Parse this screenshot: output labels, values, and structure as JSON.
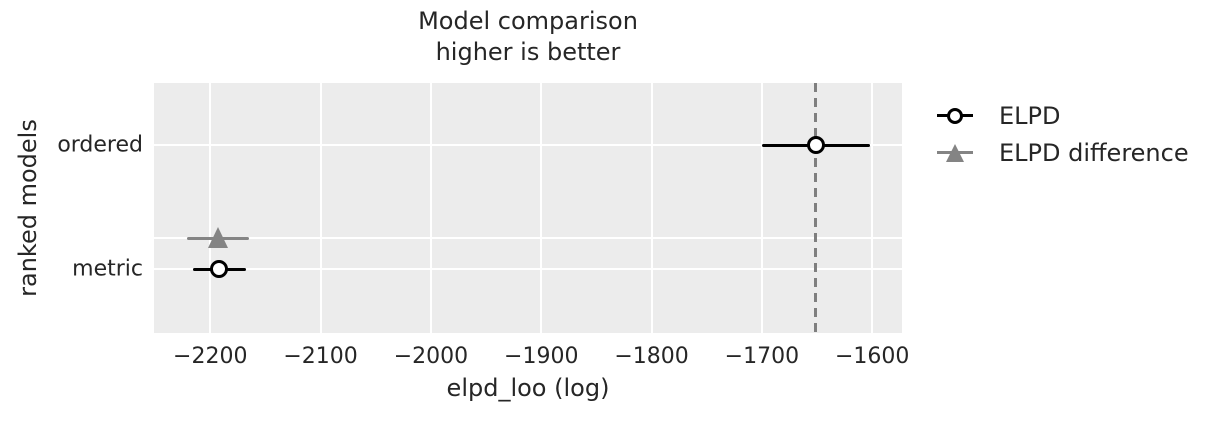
{
  "figure": {
    "title_line1": "Model comparison",
    "title_line2": "higher is better"
  },
  "axes": {
    "xlabel": "elpd_loo (log)",
    "ylabel": "ranked models"
  },
  "legend": {
    "items": [
      {
        "label": "ELPD",
        "marker": "open-circle"
      },
      {
        "label": "ELPD difference",
        "marker": "triangle"
      }
    ]
  },
  "chart_data": {
    "type": "scatter",
    "title": "Model comparison — higher is better",
    "xlabel": "elpd_loo (log)",
    "ylabel": "ranked models",
    "xlim": [
      -2251,
      -1573
    ],
    "ylim": [
      0.5,
      -1.516
    ],
    "xticks": [
      -2200,
      -2100,
      -2000,
      -1900,
      -1800,
      -1700,
      -1600
    ],
    "yticks": [
      {
        "label": "ordered",
        "pos": 0
      },
      {
        "label": "metric",
        "pos": -1
      }
    ],
    "grid": true,
    "grid_ypos": [
      0,
      -0.75,
      -1
    ],
    "legend_position": "outside-right",
    "vline_x": -1651,
    "vline_style": "dashed",
    "series": [
      {
        "id": "elpd",
        "name": "ELPD",
        "marker": "open-circle",
        "color": "#000000",
        "points": [
          {
            "model": "ordered",
            "x": -1651,
            "y": 0,
            "x_lower": -1700,
            "x_upper": -1602
          },
          {
            "model": "metric",
            "x": -2192,
            "y": -1,
            "x_lower": -2216,
            "x_upper": -2168
          }
        ]
      },
      {
        "id": "elpd-difference",
        "name": "ELPD difference",
        "marker": "triangle",
        "color": "#848484",
        "points": [
          {
            "model": "metric",
            "x": -2193,
            "y": -0.75,
            "x_lower": -2221,
            "x_upper": -2165
          }
        ]
      }
    ],
    "colors": {
      "plot_background": "#ececec",
      "grid": "#ffffff",
      "vline": "#7f7f7f",
      "text": "#262626"
    }
  }
}
